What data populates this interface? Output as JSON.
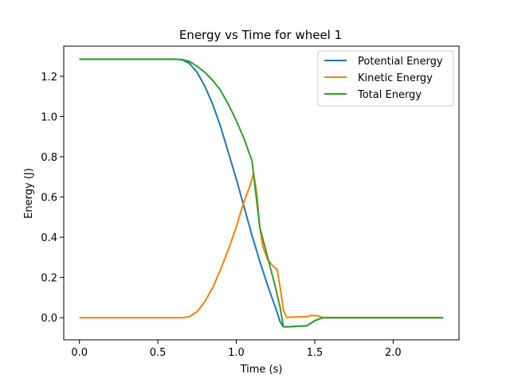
{
  "chart_data": {
    "type": "line",
    "title": "Energy vs Time for wheel 1",
    "xlabel": "Time (s)",
    "ylabel": "Energy (J)",
    "xlim": [
      -0.1,
      2.42
    ],
    "ylim": [
      -0.11,
      1.35
    ],
    "xticks": [
      0.0,
      0.5,
      1.0,
      1.5,
      2.0
    ],
    "xtick_labels": [
      "0.0",
      "0.5",
      "1.0",
      "1.5",
      "2.0"
    ],
    "yticks": [
      0.0,
      0.2,
      0.4,
      0.6,
      0.8,
      1.0,
      1.2
    ],
    "ytick_labels": [
      "0.0",
      "0.2",
      "0.4",
      "0.6",
      "0.8",
      "1.0",
      "1.2"
    ],
    "grid": false,
    "legend_position": "upper right",
    "series": [
      {
        "name": "Potential Energy",
        "color": "#1f77b4",
        "points": [
          [
            0.0,
            1.285
          ],
          [
            0.6,
            1.285
          ],
          [
            0.65,
            1.283
          ],
          [
            0.7,
            1.265
          ],
          [
            0.75,
            1.22
          ],
          [
            0.8,
            1.15
          ],
          [
            0.85,
            1.06
          ],
          [
            0.9,
            0.95
          ],
          [
            0.95,
            0.82
          ],
          [
            1.0,
            0.69
          ],
          [
            1.05,
            0.55
          ],
          [
            1.1,
            0.41
          ],
          [
            1.15,
            0.28
          ],
          [
            1.2,
            0.16
          ],
          [
            1.25,
            0.05
          ],
          [
            1.28,
            -0.02
          ],
          [
            1.3,
            -0.045
          ],
          [
            1.33,
            -0.045
          ],
          [
            1.45,
            -0.04
          ],
          [
            1.5,
            -0.015
          ],
          [
            1.55,
            0.0
          ],
          [
            2.32,
            0.0
          ]
        ]
      },
      {
        "name": "Kinetic Energy",
        "color": "#ff7f0e",
        "points": [
          [
            0.0,
            0.0
          ],
          [
            0.66,
            0.0
          ],
          [
            0.7,
            0.005
          ],
          [
            0.75,
            0.03
          ],
          [
            0.8,
            0.08
          ],
          [
            0.85,
            0.15
          ],
          [
            0.9,
            0.24
          ],
          [
            0.95,
            0.34
          ],
          [
            1.0,
            0.45
          ],
          [
            1.03,
            0.53
          ],
          [
            1.06,
            0.6
          ],
          [
            1.09,
            0.66
          ],
          [
            1.11,
            0.72
          ],
          [
            1.13,
            0.62
          ],
          [
            1.15,
            0.45
          ],
          [
            1.17,
            0.35
          ],
          [
            1.2,
            0.29
          ],
          [
            1.23,
            0.26
          ],
          [
            1.26,
            0.24
          ],
          [
            1.28,
            0.15
          ],
          [
            1.3,
            0.04
          ],
          [
            1.32,
            0.002
          ],
          [
            1.45,
            0.005
          ],
          [
            1.48,
            0.012
          ],
          [
            1.52,
            0.01
          ],
          [
            1.55,
            0.0
          ],
          [
            2.32,
            0.0
          ]
        ]
      },
      {
        "name": "Total Energy",
        "color": "#2ca02c",
        "points": [
          [
            0.0,
            1.285
          ],
          [
            0.6,
            1.285
          ],
          [
            0.65,
            1.284
          ],
          [
            0.7,
            1.275
          ],
          [
            0.75,
            1.25
          ],
          [
            0.8,
            1.22
          ],
          [
            0.85,
            1.18
          ],
          [
            0.9,
            1.13
          ],
          [
            0.95,
            1.06
          ],
          [
            1.0,
            0.98
          ],
          [
            1.05,
            0.89
          ],
          [
            1.1,
            0.78
          ],
          [
            1.12,
            0.65
          ],
          [
            1.15,
            0.45
          ],
          [
            1.2,
            0.3
          ],
          [
            1.25,
            0.15
          ],
          [
            1.28,
            0.05
          ],
          [
            1.3,
            -0.045
          ],
          [
            1.33,
            -0.045
          ],
          [
            1.45,
            -0.04
          ],
          [
            1.5,
            -0.015
          ],
          [
            1.55,
            0.0
          ],
          [
            2.32,
            0.0
          ]
        ]
      }
    ]
  }
}
